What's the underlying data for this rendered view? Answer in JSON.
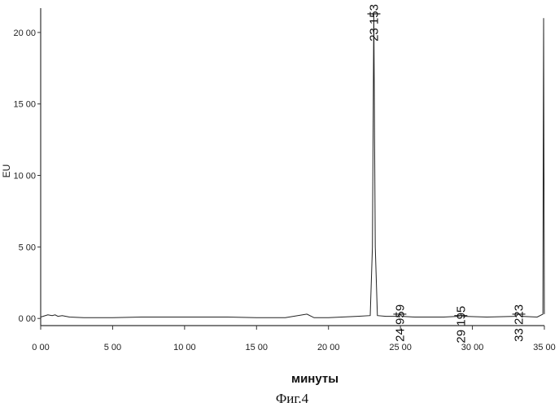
{
  "chart_data": {
    "type": "line",
    "xlabel": "минуты",
    "ylabel": "EU",
    "caption": "Фиг.4",
    "xlim": [
      0,
      35
    ],
    "ylim": [
      -0.5,
      21.7
    ],
    "x_ticks": [
      0,
      5,
      10,
      15,
      20,
      25,
      30,
      35
    ],
    "x_tick_labels": [
      "0 00",
      "5 00",
      "10 00",
      "15 00",
      "20 00",
      "25 00",
      "30 00",
      "35 00"
    ],
    "y_ticks": [
      0,
      5,
      10,
      15,
      20
    ],
    "y_tick_labels": [
      "0 00",
      "5 00",
      "10 00",
      "15 00",
      "20 00"
    ],
    "grid": false,
    "peaks": [
      {
        "label": "23 153",
        "x": 23.153,
        "y": 21.3
      },
      {
        "label": "24 959",
        "x": 24.959,
        "y": 0.3
      },
      {
        "label": "29 195",
        "x": 29.195,
        "y": 0.2
      },
      {
        "label": "33 223",
        "x": 33.223,
        "y": 0.3
      }
    ],
    "series": [
      {
        "x": [
          0.0,
          0.5,
          0.8,
          1.0,
          1.2,
          1.5,
          2.0,
          3.0,
          5.0,
          7.0,
          9.0,
          11.0,
          13.0,
          15.0,
          17.0,
          18.5,
          19.0,
          20.0,
          22.0,
          22.9,
          23.05,
          23.15,
          23.25,
          23.4,
          24.0,
          24.8,
          24.96,
          25.1,
          26.0,
          28.0,
          29.0,
          29.2,
          29.4,
          31.0,
          33.0,
          33.22,
          33.4,
          34.5,
          34.9,
          34.95,
          35.0
        ],
        "y": [
          0.1,
          0.25,
          0.2,
          0.25,
          0.15,
          0.2,
          0.1,
          0.05,
          0.05,
          0.1,
          0.1,
          0.1,
          0.1,
          0.05,
          0.05,
          0.3,
          0.05,
          0.05,
          0.15,
          0.2,
          5.0,
          21.3,
          5.0,
          0.2,
          0.15,
          0.15,
          0.3,
          0.15,
          0.1,
          0.1,
          0.15,
          0.2,
          0.15,
          0.1,
          0.15,
          0.3,
          0.15,
          0.1,
          0.3,
          21.0,
          0.3
        ]
      }
    ]
  }
}
